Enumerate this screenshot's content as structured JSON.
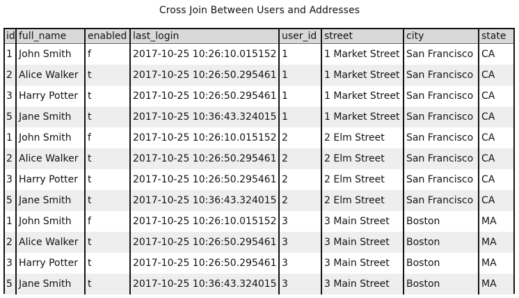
{
  "title": "Cross Join Between Users and Addresses",
  "table": {
    "columns": [
      "id",
      "full_name",
      "enabled",
      "last_login",
      "user_id",
      "street",
      "city",
      "state"
    ],
    "rows": [
      [
        "1",
        "John Smith",
        "f",
        "2017-10-25 10:26:10.015152",
        "1",
        "1 Market Street",
        "San Francisco",
        "CA"
      ],
      [
        "2",
        "Alice Walker",
        "t",
        "2017-10-25 10:26:50.295461",
        "1",
        "1 Market Street",
        "San Francisco",
        "CA"
      ],
      [
        "3",
        "Harry Potter",
        "t",
        "2017-10-25 10:26:50.295461",
        "1",
        "1 Market Street",
        "San Francisco",
        "CA"
      ],
      [
        "5",
        "Jane Smith",
        "t",
        "2017-10-25 10:36:43.324015",
        "1",
        "1 Market Street",
        "San Francisco",
        "CA"
      ],
      [
        "1",
        "John Smith",
        "f",
        "2017-10-25 10:26:10.015152",
        "2",
        "2 Elm Street",
        "San Francisco",
        "CA"
      ],
      [
        "2",
        "Alice Walker",
        "t",
        "2017-10-25 10:26:50.295461",
        "2",
        "2 Elm Street",
        "San Francisco",
        "CA"
      ],
      [
        "3",
        "Harry Potter",
        "t",
        "2017-10-25 10:26:50.295461",
        "2",
        "2 Elm Street",
        "San Francisco",
        "CA"
      ],
      [
        "5",
        "Jane Smith",
        "t",
        "2017-10-25 10:36:43.324015",
        "2",
        "2 Elm Street",
        "San Francisco",
        "CA"
      ],
      [
        "1",
        "John Smith",
        "f",
        "2017-10-25 10:26:10.015152",
        "3",
        "3 Main Street",
        "Boston",
        "MA"
      ],
      [
        "2",
        "Alice Walker",
        "t",
        "2017-10-25 10:26:50.295461",
        "3",
        "3 Main Street",
        "Boston",
        "MA"
      ],
      [
        "3",
        "Harry Potter",
        "t",
        "2017-10-25 10:26:50.295461",
        "3",
        "3 Main Street",
        "Boston",
        "MA"
      ],
      [
        "5",
        "Jane Smith",
        "t",
        "2017-10-25 10:36:43.324015",
        "3",
        "3 Main Street",
        "Boston",
        "MA"
      ]
    ]
  }
}
